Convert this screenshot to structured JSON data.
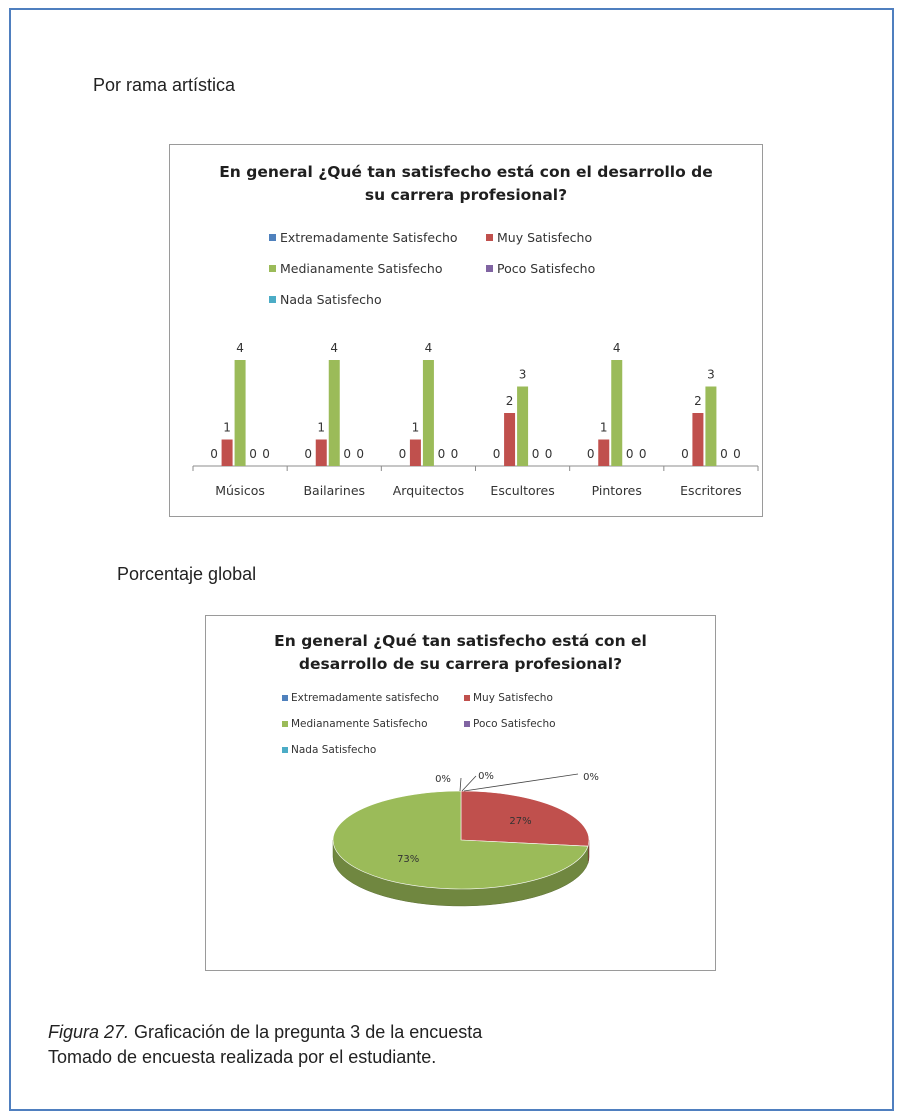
{
  "headings": {
    "by_branch": "Por rama artística",
    "global": "Porcentaje global"
  },
  "legend_entries": [
    {
      "name": "Extremadamente Satisfecho",
      "color": "#4f81bd"
    },
    {
      "name": "Muy Satisfecho",
      "color": "#c0504d"
    },
    {
      "name": "Medianamente Satisfecho",
      "color": "#9bbb59"
    },
    {
      "name": "Poco Satisfecho",
      "color": "#8064a2"
    },
    {
      "name": "Nada Satisfecho",
      "color": "#4bacc6"
    }
  ],
  "pie_legend_entries": [
    {
      "name": "Extremadamente satisfecho",
      "color": "#4f81bd"
    },
    {
      "name": "Muy Satisfecho",
      "color": "#c0504d"
    },
    {
      "name": "Medianamente Satisfecho",
      "color": "#9bbb59"
    },
    {
      "name": "Poco Satisfecho",
      "color": "#8064a2"
    },
    {
      "name": "Nada Satisfecho",
      "color": "#4bacc6"
    }
  ],
  "chart_data": [
    {
      "type": "bar",
      "title_line1": "En general ¿Qué tan satisfecho está con el desarrollo de",
      "title_line2": "su carrera profesional?",
      "categories": [
        "Músicos",
        "Bailarines",
        "Arquitectos",
        "Escultores",
        "Pintores",
        "Escritores"
      ],
      "series": [
        {
          "name": "Extremadamente Satisfecho",
          "color": "#4f81bd",
          "values": [
            0,
            0,
            0,
            0,
            0,
            0
          ]
        },
        {
          "name": "Muy Satisfecho",
          "color": "#c0504d",
          "values": [
            1,
            1,
            1,
            2,
            1,
            2
          ]
        },
        {
          "name": "Medianamente Satisfecho",
          "color": "#9bbb59",
          "values": [
            4,
            4,
            4,
            3,
            4,
            3
          ]
        },
        {
          "name": "Poco Satisfecho",
          "color": "#8064a2",
          "values": [
            0,
            0,
            0,
            0,
            0,
            0
          ]
        },
        {
          "name": "Nada Satisfecho",
          "color": "#4bacc6",
          "values": [
            0,
            0,
            0,
            0,
            0,
            0
          ]
        }
      ],
      "ylim": [
        0,
        4
      ],
      "legend_position": "top",
      "grid": false
    },
    {
      "type": "pie",
      "title_line1": "En general ¿Qué tan satisfecho está con el",
      "title_line2": "desarrollo de su carrera profesional?",
      "slices": [
        {
          "name": "Extremadamente satisfecho",
          "value": 0,
          "label": "0%",
          "color": "#4f81bd"
        },
        {
          "name": "Muy Satisfecho",
          "value": 27,
          "label": "27%",
          "color": "#c0504d"
        },
        {
          "name": "Medianamente Satisfecho",
          "value": 73,
          "label": "73%",
          "color": "#9bbb59"
        },
        {
          "name": "Poco Satisfecho",
          "value": 0,
          "label": "0%",
          "color": "#8064a2"
        },
        {
          "name": "Nada Satisfecho",
          "value": 0,
          "label": "0%",
          "color": "#4bacc6"
        }
      ],
      "legend_position": "top",
      "style": "3d"
    }
  ],
  "caption": {
    "figure_label": "Figura 27.",
    "line1": " Graficación de la pregunta 3 de la encuesta",
    "line2": "Tomado de encuesta realizada por el estudiante."
  }
}
